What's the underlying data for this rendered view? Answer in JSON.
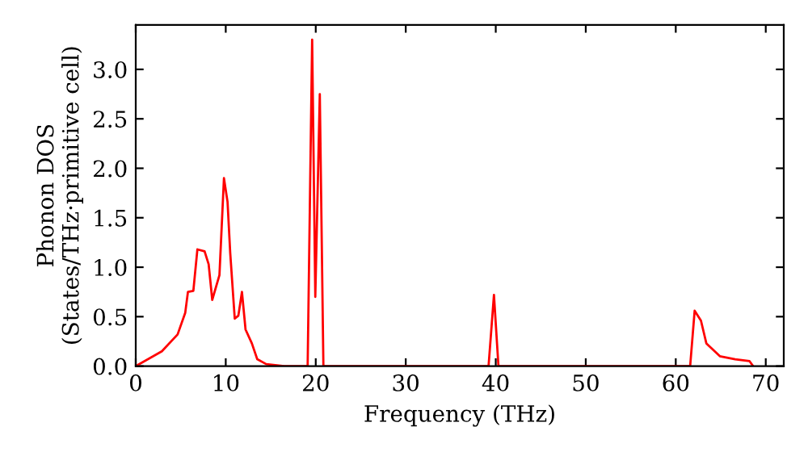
{
  "chart_data": {
    "type": "line",
    "xlabel": "Frequency (THz)",
    "ylabel": "Phonon DOS\n(States/THz·primitive cell)",
    "xlim": [
      0,
      72
    ],
    "ylim": [
      0,
      3.45
    ],
    "xticks": [
      0,
      10,
      20,
      30,
      40,
      50,
      60,
      70
    ],
    "yticks": [
      {
        "value": 0,
        "label": "0.0"
      },
      0.5,
      {
        "value": 1,
        "label": "1.0"
      },
      1.5,
      {
        "value": 2,
        "label": "2.0"
      },
      2.5,
      {
        "value": 3,
        "label": "3.0"
      }
    ],
    "grid": false,
    "legend": false,
    "marker": "none",
    "line_style": "solid",
    "series": [
      {
        "color": "#ff0000",
        "x": [
          0,
          2.9,
          4.65,
          5.5,
          5.8,
          6.4,
          6.85,
          7.65,
          8.1,
          8.5,
          9.3,
          9.8,
          10.2,
          10.5,
          11.0,
          11.4,
          11.8,
          12.2,
          12.9,
          13.5,
          14.5,
          16.5,
          19.1,
          19.6,
          19.95,
          20.45,
          20.85,
          39.2,
          39.8,
          40.3,
          61.6,
          62.1,
          62.8,
          63.4,
          64.9,
          66.6,
          68.2,
          68.6
        ],
        "values": [
          0,
          0.15,
          0.32,
          0.54,
          0.75,
          0.76,
          1.18,
          1.16,
          1.03,
          0.67,
          0.92,
          1.9,
          1.66,
          1.14,
          0.48,
          0.51,
          0.75,
          0.37,
          0.23,
          0.07,
          0.02,
          0,
          0,
          3.3,
          0.7,
          2.75,
          0,
          0,
          0.72,
          0,
          0,
          0.56,
          0.46,
          0.23,
          0.1,
          0.07,
          0.05,
          0
        ]
      }
    ]
  }
}
